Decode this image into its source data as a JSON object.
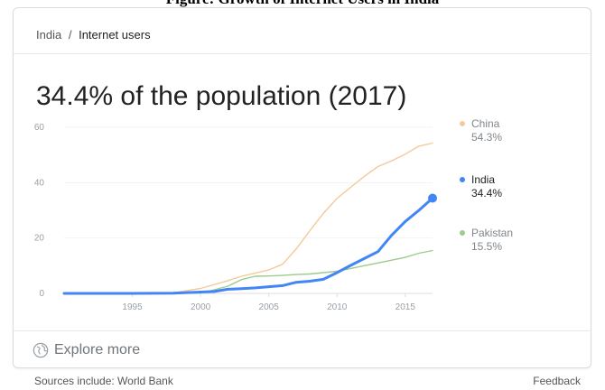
{
  "caption": "Figure: Growth of Internet Users in India",
  "breadcrumb": {
    "parent": "India",
    "separator": "/",
    "current": "Internet users"
  },
  "headline": "34.4% of the population (2017)",
  "chart_data": {
    "type": "line",
    "title": "34.4% of the population (2017)",
    "xlabel": "",
    "ylabel": "",
    "xlim": [
      1990,
      2017
    ],
    "ylim": [
      0,
      60
    ],
    "x_ticks": [
      1995,
      2000,
      2005,
      2010,
      2015
    ],
    "y_ticks": [
      0,
      20,
      40,
      60
    ],
    "grid": true,
    "legend": "right",
    "series": [
      {
        "name": "China",
        "color": "#f5c99a",
        "value_label": "54.3%",
        "x": [
          1990,
          1995,
          1998,
          2000,
          2002,
          2003,
          2004,
          2005,
          2006,
          2007,
          2008,
          2009,
          2010,
          2011,
          2012,
          2013,
          2014,
          2015,
          2016,
          2017
        ],
        "y": [
          0,
          0.1,
          0.2,
          1.8,
          4.6,
          6.2,
          7.3,
          8.5,
          10.5,
          16,
          22.6,
          28.9,
          34.3,
          38.3,
          42.3,
          45.8,
          47.9,
          50.3,
          53.2,
          54.3
        ]
      },
      {
        "name": "India",
        "color": "#4285f4",
        "value_label": "34.4%",
        "x": [
          1990,
          1995,
          1998,
          2000,
          2001,
          2002,
          2003,
          2004,
          2005,
          2006,
          2007,
          2008,
          2009,
          2010,
          2011,
          2012,
          2013,
          2014,
          2015,
          2016,
          2017
        ],
        "y": [
          0,
          0,
          0.1,
          0.5,
          0.7,
          1.5,
          1.7,
          2.0,
          2.4,
          2.8,
          4.0,
          4.4,
          5.1,
          7.5,
          10.1,
          12.6,
          15.1,
          21,
          26,
          30,
          34.4
        ]
      },
      {
        "name": "Pakistan",
        "color": "#9ccc8c",
        "value_label": "15.5%",
        "x": [
          1990,
          1995,
          1999,
          2000,
          2001,
          2002,
          2003,
          2004,
          2005,
          2006,
          2007,
          2008,
          2009,
          2010,
          2011,
          2012,
          2013,
          2014,
          2015,
          2016,
          2017
        ],
        "y": [
          0,
          0,
          0.1,
          0.1,
          1.3,
          2.6,
          5.0,
          6.2,
          6.3,
          6.5,
          6.8,
          7.0,
          7.5,
          8.0,
          9.0,
          10.0,
          11.0,
          12.0,
          13.0,
          14.5,
          15.5
        ]
      }
    ]
  },
  "explore_label": "Explore more",
  "footer": {
    "sources": "Sources include: World Bank",
    "feedback": "Feedback"
  }
}
